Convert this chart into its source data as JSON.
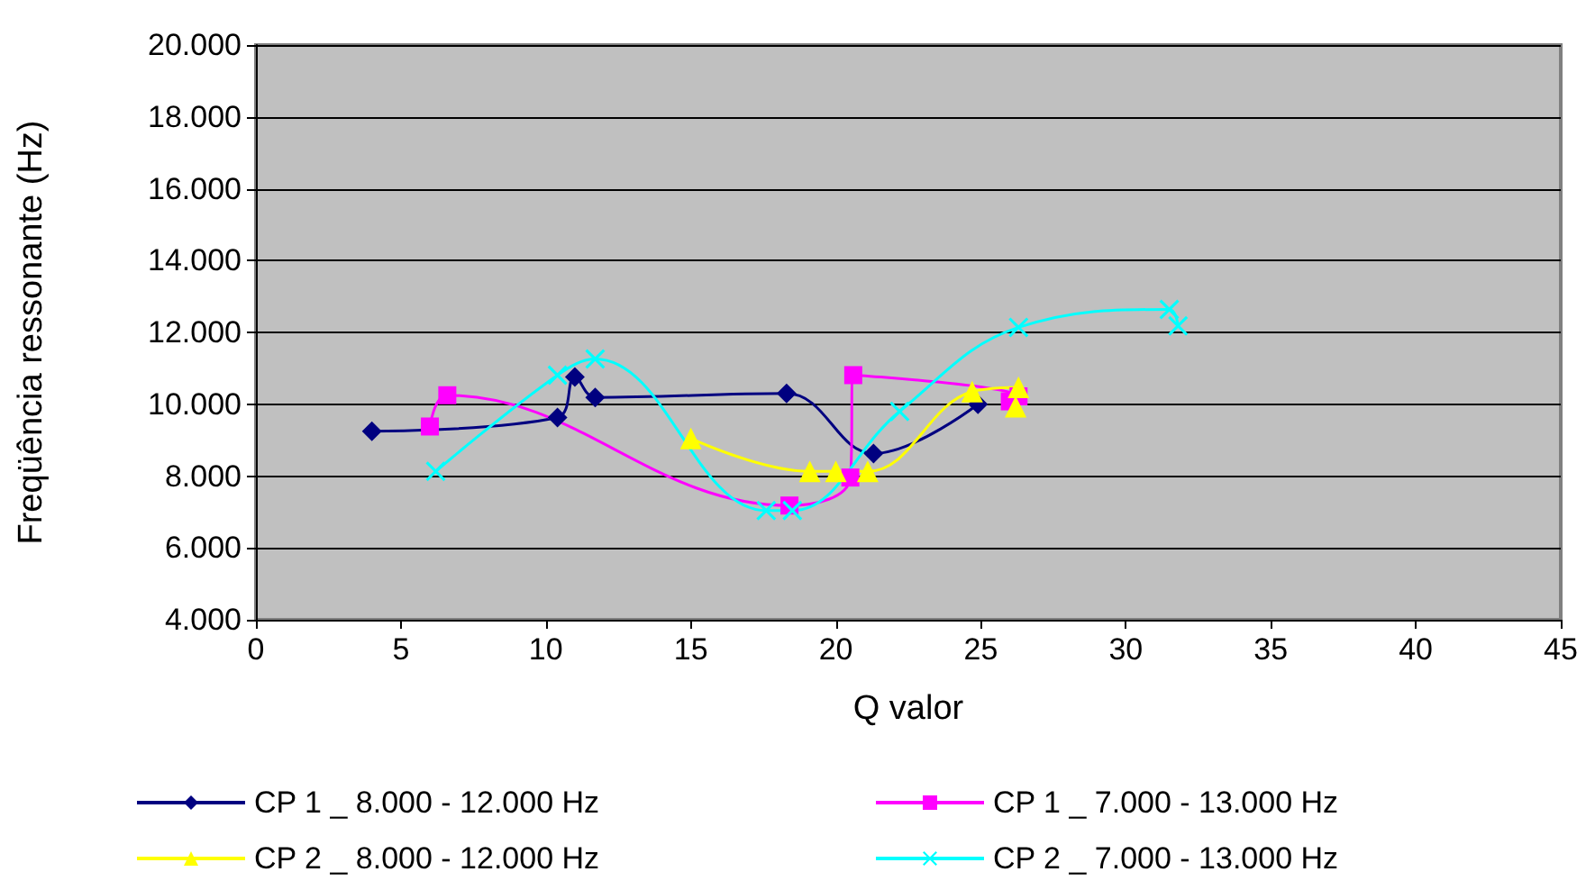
{
  "chart_data": {
    "type": "line",
    "xlabel": "Q valor",
    "ylabel": "Freqüência ressonante (Hz)",
    "xlim": [
      0,
      45
    ],
    "xticks": [
      0,
      5,
      10,
      15,
      20,
      25,
      30,
      35,
      40,
      45
    ],
    "ylim": [
      4000,
      20000
    ],
    "yticks": [
      {
        "value": 4000,
        "label": "4.000"
      },
      {
        "value": 6000,
        "label": "6.000"
      },
      {
        "value": 8000,
        "label": "8.000"
      },
      {
        "value": 10000,
        "label": "10.000"
      },
      {
        "value": 12000,
        "label": "12.000"
      },
      {
        "value": 14000,
        "label": "14.000"
      },
      {
        "value": 16000,
        "label": "16.000"
      },
      {
        "value": 18000,
        "label": "18.000"
      },
      {
        "value": 20000,
        "label": "20.000"
      }
    ],
    "grid": "y",
    "legend": "bottom",
    "series": [
      {
        "name": "CP 1 _ 8.000 - 12.000 Hz",
        "color": "#000080",
        "marker": "diamond",
        "x": [
          4.0,
          10.4,
          11.0,
          11.7,
          18.3,
          21.3,
          24.9
        ],
        "values": [
          9250,
          9630,
          10760,
          10190,
          10300,
          8630,
          10000
        ]
      },
      {
        "name": "CP 1 _ 7.000 - 13.000 Hz",
        "color": "#ff00ff",
        "marker": "square",
        "x": [
          6.0,
          6.6,
          18.4,
          20.5,
          20.6,
          26.3,
          26.0
        ],
        "values": [
          9380,
          10250,
          7180,
          7960,
          10810,
          10220,
          10080
        ]
      },
      {
        "name": "CP 2 _ 8.000 - 12.000 Hz",
        "color": "#ffff00",
        "marker": "triangle",
        "x": [
          15.0,
          19.1,
          20.0,
          21.1,
          24.7,
          26.3,
          26.2
        ],
        "values": [
          9050,
          8130,
          8130,
          8130,
          10350,
          10470,
          9930
        ]
      },
      {
        "name": "CP 2 _ 7.000 - 13.000 Hz",
        "color": "#00ffff",
        "marker": "cross",
        "x": [
          6.2,
          10.4,
          11.7,
          17.6,
          18.5,
          22.2,
          26.3,
          31.5,
          31.8
        ],
        "values": [
          8130,
          10810,
          11260,
          7040,
          7040,
          9800,
          12140,
          12640,
          12180
        ]
      }
    ]
  }
}
